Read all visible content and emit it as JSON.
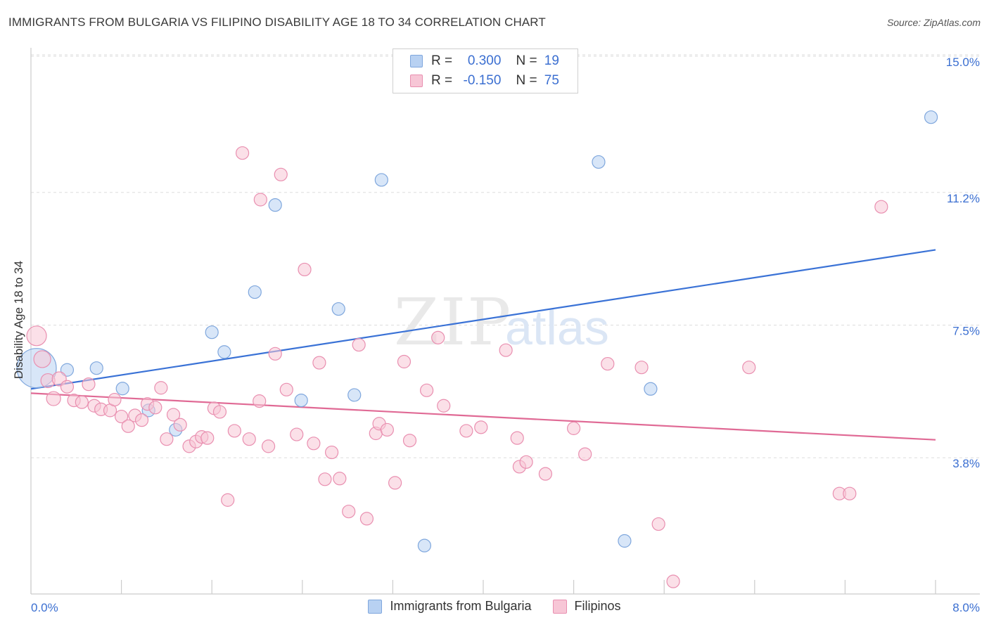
{
  "header": {
    "title": "IMMIGRANTS FROM BULGARIA VS FILIPINO DISABILITY AGE 18 TO 34 CORRELATION CHART",
    "source": "Source: ZipAtlas.com"
  },
  "legend": {
    "rows": [
      {
        "r_label": "R =",
        "r_value": "0.300",
        "n_label": "N =",
        "n_value": "19"
      },
      {
        "r_label": "R =",
        "r_value": "-0.150",
        "n_label": "N =",
        "n_value": "75"
      }
    ]
  },
  "bottom_legend": [
    "Immigrants from Bulgaria",
    "Filipinos"
  ],
  "watermark": {
    "zip": "ZIP",
    "atlas": "atlas"
  },
  "colors": {
    "bulgaria_fill": "#b8d1f2",
    "bulgaria_stroke": "#7fa7dd",
    "bulgaria_line": "#3a72d6",
    "filipino_fill": "#f7c6d6",
    "filipino_stroke": "#e98fb0",
    "filipino_line": "#e06a95",
    "tick_label": "#3b6fd1",
    "grid": "#dddddd"
  },
  "chart_data": {
    "type": "scatter",
    "title": "IMMIGRANTS FROM BULGARIA VS FILIPINO DISABILITY AGE 18 TO 34 CORRELATION CHART",
    "xlabel": "",
    "ylabel": "Disability Age 18 to 34",
    "xlim": [
      0,
      8.0
    ],
    "ylim": [
      0,
      15.0
    ],
    "x_tick_labels": [
      {
        "value": 0,
        "label": "0.0%"
      },
      {
        "value": 8.0,
        "label": "8.0%"
      }
    ],
    "y_tick_labels": [
      {
        "value": 15.0,
        "label": "15.0%"
      },
      {
        "value": 11.2,
        "label": "11.2%"
      },
      {
        "value": 7.5,
        "label": "7.5%"
      },
      {
        "value": 3.8,
        "label": "3.8%"
      }
    ],
    "series": [
      {
        "name": "Immigrants from Bulgaria",
        "r": 0.3,
        "n": 19,
        "trend": [
          [
            0.0,
            5.72
          ],
          [
            8.0,
            9.6
          ]
        ],
        "points": [
          [
            0.05,
            6.3,
            28
          ],
          [
            0.32,
            6.25,
            9
          ],
          [
            0.58,
            6.3,
            9
          ],
          [
            0.81,
            5.73,
            9
          ],
          [
            1.04,
            5.12,
            9
          ],
          [
            1.28,
            4.58,
            9
          ],
          [
            1.6,
            7.3,
            9
          ],
          [
            1.71,
            6.75,
            9
          ],
          [
            1.98,
            8.42,
            9
          ],
          [
            2.16,
            10.85,
            9
          ],
          [
            2.39,
            5.4,
            9
          ],
          [
            2.72,
            7.95,
            9
          ],
          [
            2.86,
            5.55,
            9
          ],
          [
            3.1,
            11.55,
            9
          ],
          [
            3.48,
            1.35,
            9
          ],
          [
            5.02,
            12.05,
            9
          ],
          [
            5.25,
            1.48,
            9
          ],
          [
            5.48,
            5.72,
            9
          ],
          [
            7.96,
            13.3,
            9
          ]
        ]
      },
      {
        "name": "Filipinos",
        "r": -0.15,
        "n": 75,
        "trend": [
          [
            0.0,
            5.6
          ],
          [
            8.0,
            4.3
          ]
        ],
        "points": [
          [
            0.05,
            7.2,
            14
          ],
          [
            0.1,
            6.55,
            12
          ],
          [
            0.15,
            5.95,
            10
          ],
          [
            0.2,
            5.45,
            10
          ],
          [
            0.25,
            6.0,
            10
          ],
          [
            0.32,
            5.78,
            9
          ],
          [
            0.38,
            5.4,
            9
          ],
          [
            0.45,
            5.35,
            9
          ],
          [
            0.51,
            5.85,
            9
          ],
          [
            0.56,
            5.25,
            9
          ],
          [
            0.62,
            5.15,
            9
          ],
          [
            0.7,
            5.12,
            9
          ],
          [
            0.74,
            5.42,
            9
          ],
          [
            0.8,
            4.95,
            9
          ],
          [
            0.86,
            4.68,
            9
          ],
          [
            0.92,
            4.98,
            9
          ],
          [
            0.98,
            4.85,
            9
          ],
          [
            1.03,
            5.3,
            9
          ],
          [
            1.1,
            5.2,
            9
          ],
          [
            1.15,
            5.75,
            9
          ],
          [
            1.2,
            4.32,
            9
          ],
          [
            1.26,
            5.0,
            9
          ],
          [
            1.32,
            4.72,
            9
          ],
          [
            1.4,
            4.12,
            9
          ],
          [
            1.46,
            4.25,
            9
          ],
          [
            1.51,
            4.38,
            9
          ],
          [
            1.56,
            4.35,
            9
          ],
          [
            1.62,
            5.18,
            9
          ],
          [
            1.67,
            5.08,
            9
          ],
          [
            1.74,
            2.62,
            9
          ],
          [
            1.8,
            4.55,
            9
          ],
          [
            1.87,
            12.3,
            9
          ],
          [
            1.93,
            4.32,
            9
          ],
          [
            2.02,
            5.38,
            9
          ],
          [
            2.03,
            11.0,
            9
          ],
          [
            2.1,
            4.12,
            9
          ],
          [
            2.16,
            6.7,
            9
          ],
          [
            2.21,
            11.7,
            9
          ],
          [
            2.26,
            5.7,
            9
          ],
          [
            2.35,
            4.45,
            9
          ],
          [
            2.42,
            9.05,
            9
          ],
          [
            2.5,
            4.2,
            9
          ],
          [
            2.55,
            6.45,
            9
          ],
          [
            2.6,
            3.2,
            9
          ],
          [
            2.66,
            3.95,
            9
          ],
          [
            2.73,
            3.22,
            9
          ],
          [
            2.81,
            2.3,
            9
          ],
          [
            2.9,
            6.95,
            9
          ],
          [
            2.97,
            2.1,
            9
          ],
          [
            3.05,
            4.48,
            9
          ],
          [
            3.08,
            4.75,
            9
          ],
          [
            3.15,
            4.58,
            9
          ],
          [
            3.22,
            3.1,
            9
          ],
          [
            3.3,
            6.48,
            9
          ],
          [
            3.35,
            4.28,
            9
          ],
          [
            3.5,
            5.68,
            9
          ],
          [
            3.6,
            7.15,
            9
          ],
          [
            3.65,
            5.25,
            9
          ],
          [
            3.85,
            4.55,
            9
          ],
          [
            3.98,
            4.65,
            9
          ],
          [
            4.2,
            6.8,
            9
          ],
          [
            4.3,
            4.35,
            9
          ],
          [
            4.32,
            3.55,
            9
          ],
          [
            4.38,
            3.68,
            9
          ],
          [
            4.55,
            3.35,
            9
          ],
          [
            4.8,
            4.62,
            9
          ],
          [
            4.9,
            3.9,
            9
          ],
          [
            5.1,
            6.42,
            9
          ],
          [
            5.4,
            6.32,
            9
          ],
          [
            5.55,
            1.95,
            9
          ],
          [
            5.68,
            0.35,
            9
          ],
          [
            6.35,
            6.32,
            9
          ],
          [
            7.15,
            2.8,
            9
          ],
          [
            7.24,
            2.8,
            9
          ],
          [
            7.52,
            10.8,
            9
          ]
        ]
      }
    ]
  }
}
